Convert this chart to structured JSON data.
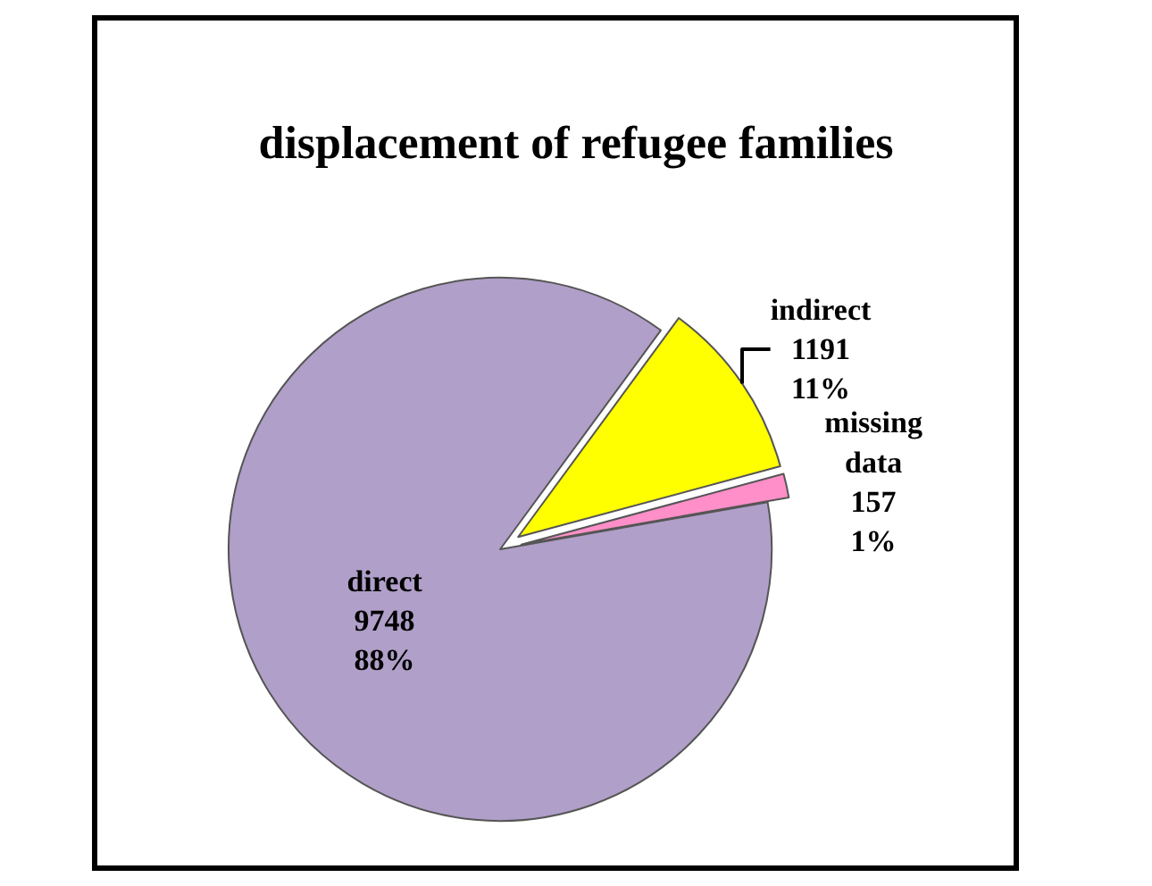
{
  "chart_data": {
    "type": "pie",
    "title": "displacement of refugee families",
    "categories": [
      "direct",
      "indirect",
      "missing data"
    ],
    "values": [
      9748,
      1191,
      157
    ],
    "colors": [
      "#b09fc8",
      "#ffff00",
      "#ff8fc8"
    ],
    "value_labels": [
      "9748\n88%",
      "1191\n11%",
      "157\n1%"
    ],
    "legend": false
  }
}
